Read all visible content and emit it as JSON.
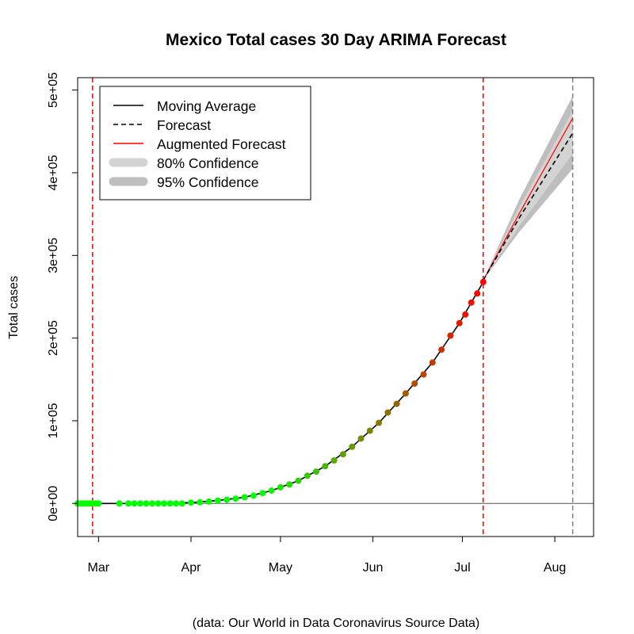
{
  "chart_data": {
    "type": "line",
    "title": "Mexico Total cases 30 Day ARIMA Forecast",
    "ylabel": "Total cases",
    "caption": "(data: Our World in Data Coronavirus Source Data)",
    "x_type": "date",
    "xlim": [
      "2020-02-23",
      "2020-08-14"
    ],
    "ylim": [
      -40000,
      515000
    ],
    "x_ticks": [
      {
        "date": "2020-03-01",
        "label": "Mar"
      },
      {
        "date": "2020-04-01",
        "label": "Apr"
      },
      {
        "date": "2020-05-01",
        "label": "May"
      },
      {
        "date": "2020-06-01",
        "label": "Jun"
      },
      {
        "date": "2020-07-01",
        "label": "Jul"
      },
      {
        "date": "2020-08-01",
        "label": "Aug"
      }
    ],
    "y_ticks": [
      {
        "value": 0,
        "label": "0e+00"
      },
      {
        "value": 100000,
        "label": "1e+05"
      },
      {
        "value": 200000,
        "label": "2e+05"
      },
      {
        "value": 300000,
        "label": "3e+05"
      },
      {
        "value": 400000,
        "label": "4e+05"
      },
      {
        "value": 500000,
        "label": "5e+05"
      }
    ],
    "vlines": [
      {
        "date": "2020-02-28",
        "color": "#ff0000",
        "style": "dashed"
      },
      {
        "date": "2020-07-08",
        "color": "#ff0000",
        "style": "dashed"
      },
      {
        "date": "2020-08-07",
        "color": "#808080",
        "style": "dashed"
      }
    ],
    "hline": {
      "value": 0,
      "color": "#000000"
    },
    "observed": {
      "name": "Total cases",
      "point_colors": {
        "start": "#00ff00",
        "end": "#ff0000"
      },
      "points": [
        [
          "2020-02-23",
          0
        ],
        [
          "2020-02-24",
          0
        ],
        [
          "2020-02-25",
          0
        ],
        [
          "2020-02-26",
          0
        ],
        [
          "2020-02-27",
          0
        ],
        [
          "2020-02-28",
          0
        ],
        [
          "2020-02-29",
          0
        ],
        [
          "2020-03-01",
          0
        ],
        [
          "2020-03-08",
          0
        ],
        [
          "2020-03-11",
          0
        ],
        [
          "2020-03-13",
          0
        ],
        [
          "2020-03-15",
          0
        ],
        [
          "2020-03-17",
          0
        ],
        [
          "2020-03-19",
          0
        ],
        [
          "2020-03-21",
          0
        ],
        [
          "2020-03-23",
          0
        ],
        [
          "2020-03-25",
          0
        ],
        [
          "2020-03-27",
          0
        ],
        [
          "2020-03-29",
          0
        ],
        [
          "2020-04-01",
          1000
        ],
        [
          "2020-04-04",
          1500
        ],
        [
          "2020-04-07",
          2300
        ],
        [
          "2020-04-10",
          3500
        ],
        [
          "2020-04-13",
          4500
        ],
        [
          "2020-04-16",
          5800
        ],
        [
          "2020-04-19",
          7500
        ],
        [
          "2020-04-22",
          9500
        ],
        [
          "2020-04-25",
          12500
        ],
        [
          "2020-04-28",
          15500
        ],
        [
          "2020-05-01",
          19500
        ],
        [
          "2020-05-04",
          23000
        ],
        [
          "2020-05-07",
          27500
        ],
        [
          "2020-05-10",
          33500
        ],
        [
          "2020-05-13",
          38500
        ],
        [
          "2020-05-16",
          45000
        ],
        [
          "2020-05-19",
          52000
        ],
        [
          "2020-05-22",
          59500
        ],
        [
          "2020-05-25",
          68500
        ],
        [
          "2020-05-28",
          78500
        ],
        [
          "2020-05-31",
          88000
        ],
        [
          "2020-06-03",
          97500
        ],
        [
          "2020-06-06",
          110000
        ],
        [
          "2020-06-09",
          120500
        ],
        [
          "2020-06-12",
          133000
        ],
        [
          "2020-06-15",
          145000
        ],
        [
          "2020-06-18",
          156000
        ],
        [
          "2020-06-21",
          170500
        ],
        [
          "2020-06-24",
          186000
        ],
        [
          "2020-06-27",
          203000
        ],
        [
          "2020-06-30",
          218000
        ],
        [
          "2020-07-02",
          228500
        ],
        [
          "2020-07-04",
          243000
        ],
        [
          "2020-07-06",
          254000
        ],
        [
          "2020-07-08",
          268000
        ]
      ]
    },
    "moving_average": {
      "name": "Moving Average",
      "color": "#000000",
      "points": [
        [
          "2020-02-23",
          0
        ],
        [
          "2020-03-01",
          0
        ],
        [
          "2020-03-11",
          0
        ],
        [
          "2020-03-21",
          0
        ],
        [
          "2020-04-01",
          1000
        ],
        [
          "2020-04-10",
          3500
        ],
        [
          "2020-04-19",
          7500
        ],
        [
          "2020-04-28",
          15500
        ],
        [
          "2020-05-07",
          27500
        ],
        [
          "2020-05-16",
          45000
        ],
        [
          "2020-05-25",
          68500
        ],
        [
          "2020-06-03",
          97500
        ],
        [
          "2020-06-12",
          133000
        ],
        [
          "2020-06-21",
          170500
        ],
        [
          "2020-06-30",
          218000
        ],
        [
          "2020-07-08",
          268000
        ]
      ]
    },
    "forecast": {
      "name": "Forecast",
      "color": "#000000",
      "style": "dashed",
      "points": [
        [
          "2020-07-08",
          270000
        ],
        [
          "2020-07-20",
          345000
        ],
        [
          "2020-08-07",
          448000
        ]
      ]
    },
    "augmented_forecast": {
      "name": "Augmented Forecast",
      "color": "#ff0000",
      "points": [
        [
          "2020-07-08",
          270000
        ],
        [
          "2020-07-20",
          350000
        ],
        [
          "2020-08-07",
          466000
        ]
      ]
    },
    "confidence_80": {
      "name": "80% Confidence",
      "color": "#d3d3d3",
      "upper": [
        [
          "2020-07-08",
          270000
        ],
        [
          "2020-07-20",
          358000
        ],
        [
          "2020-08-07",
          475000
        ]
      ],
      "lower": [
        [
          "2020-07-08",
          270000
        ],
        [
          "2020-07-20",
          335000
        ],
        [
          "2020-08-07",
          423000
        ]
      ]
    },
    "confidence_95": {
      "name": "95% Confidence",
      "color": "#bebebe",
      "upper": [
        [
          "2020-07-08",
          270000
        ],
        [
          "2020-07-20",
          367000
        ],
        [
          "2020-08-07",
          493000
        ]
      ],
      "lower": [
        [
          "2020-07-08",
          270000
        ],
        [
          "2020-07-20",
          328000
        ],
        [
          "2020-08-07",
          405000
        ]
      ]
    },
    "legend": {
      "position": "top-left",
      "entries": [
        {
          "label": "Moving Average",
          "kind": "line",
          "color": "#000000"
        },
        {
          "label": "Forecast",
          "kind": "dashed",
          "color": "#000000"
        },
        {
          "label": "Augmented Forecast",
          "kind": "line",
          "color": "#ff0000"
        },
        {
          "label": "80% Confidence",
          "kind": "band",
          "color": "#d3d3d3"
        },
        {
          "label": "95% Confidence",
          "kind": "band",
          "color": "#bebebe"
        }
      ]
    }
  }
}
